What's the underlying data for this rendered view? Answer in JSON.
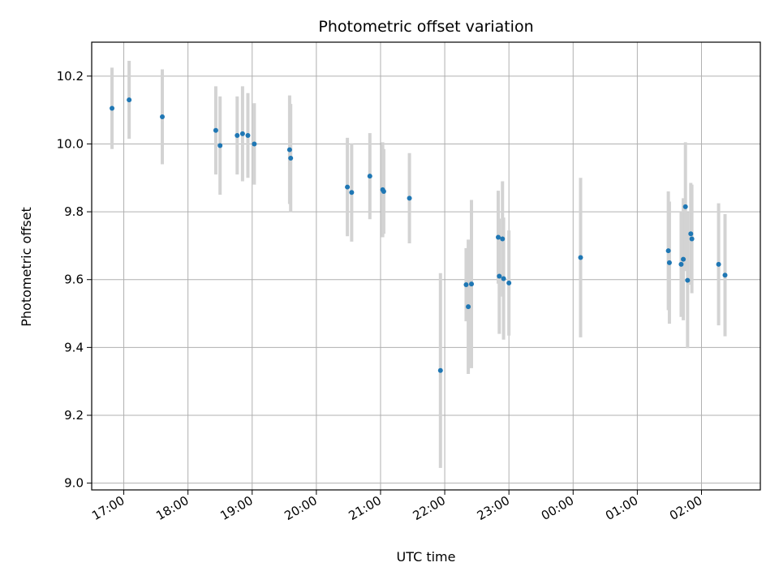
{
  "chart_data": {
    "type": "scatter",
    "title": "Photometric offset variation",
    "xlabel": "UTC time",
    "ylabel": "Photometric offset",
    "grid": true,
    "xlim": [
      "16:30",
      "02:55"
    ],
    "ylim": [
      8.98,
      10.3
    ],
    "x_ticks": [
      "17:00",
      "18:00",
      "19:00",
      "20:00",
      "21:00",
      "22:00",
      "23:00",
      "00:00",
      "01:00",
      "02:00"
    ],
    "y_ticks": [
      9.0,
      9.2,
      9.4,
      9.6,
      9.8,
      10.0,
      10.2
    ],
    "colors": {
      "point": "#1f77b4",
      "errorbar": "#d3d3d3",
      "grid": "#b0b0b0"
    },
    "points": [
      {
        "x": "16:49",
        "y": 10.105,
        "err": 0.12
      },
      {
        "x": "17:05",
        "y": 10.13,
        "err": 0.115
      },
      {
        "x": "17:36",
        "y": 10.08,
        "err": 0.14
      },
      {
        "x": "18:26",
        "y": 10.04,
        "err": 0.13
      },
      {
        "x": "18:30",
        "y": 9.995,
        "err": 0.145
      },
      {
        "x": "18:46",
        "y": 10.025,
        "err": 0.115
      },
      {
        "x": "18:51",
        "y": 10.03,
        "err": 0.14
      },
      {
        "x": "18:56",
        "y": 10.025,
        "err": 0.125
      },
      {
        "x": "19:02",
        "y": 10.0,
        "err": 0.12
      },
      {
        "x": "19:35",
        "y": 9.983,
        "err": 0.16
      },
      {
        "x": "19:36",
        "y": 9.958,
        "err": 0.16
      },
      {
        "x": "20:29",
        "y": 9.873,
        "err": 0.145
      },
      {
        "x": "20:33",
        "y": 9.857,
        "err": 0.145
      },
      {
        "x": "20:50",
        "y": 9.905,
        "err": 0.127
      },
      {
        "x": "21:02",
        "y": 9.865,
        "err": 0.14
      },
      {
        "x": "21:03",
        "y": 9.86,
        "err": 0.125
      },
      {
        "x": "21:27",
        "y": 9.84,
        "err": 0.133
      },
      {
        "x": "21:56",
        "y": 9.332,
        "err": 0.287
      },
      {
        "x": "22:20",
        "y": 9.585,
        "err": 0.108
      },
      {
        "x": "22:22",
        "y": 9.52,
        "err": 0.198
      },
      {
        "x": "22:25",
        "y": 9.587,
        "err": 0.248
      },
      {
        "x": "22:50",
        "y": 9.725,
        "err": 0.137
      },
      {
        "x": "22:51",
        "y": 9.61,
        "err": 0.17
      },
      {
        "x": "22:54",
        "y": 9.72,
        "err": 0.17
      },
      {
        "x": "22:55",
        "y": 9.603,
        "err": 0.18
      },
      {
        "x": "23:00",
        "y": 9.59,
        "err": 0.155
      },
      {
        "x": "00:07",
        "y": 9.665,
        "err": 0.235
      },
      {
        "x": "01:29",
        "y": 9.685,
        "err": 0.175
      },
      {
        "x": "01:30",
        "y": 9.65,
        "err": 0.18
      },
      {
        "x": "01:41",
        "y": 9.645,
        "err": 0.155
      },
      {
        "x": "01:43",
        "y": 9.66,
        "err": 0.18
      },
      {
        "x": "01:45",
        "y": 9.815,
        "err": 0.19
      },
      {
        "x": "01:47",
        "y": 9.598,
        "err": 0.2
      },
      {
        "x": "01:50",
        "y": 9.735,
        "err": 0.15
      },
      {
        "x": "01:51",
        "y": 9.72,
        "err": 0.16
      },
      {
        "x": "02:16",
        "y": 9.645,
        "err": 0.18
      },
      {
        "x": "02:22",
        "y": 9.613,
        "err": 0.18
      }
    ]
  }
}
